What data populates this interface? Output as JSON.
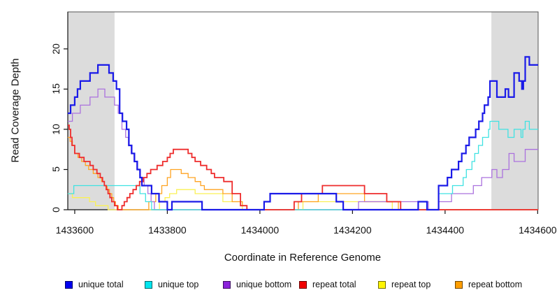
{
  "chart_data": {
    "type": "line",
    "line_style": "step-after",
    "title": "",
    "xlabel": "Coordinate in Reference Genome",
    "ylabel": "Read Coverage Depth",
    "xlim": [
      1433585,
      1434601
    ],
    "ylim": [
      0,
      24.6
    ],
    "xticks": [
      "1433600",
      "1433800",
      "1434000",
      "1434200",
      "1434400",
      "1434600"
    ],
    "xtick_values": [
      1433600,
      1433800,
      1434000,
      1434200,
      1434400,
      1434600
    ],
    "yticks": [
      "0",
      "5",
      "10",
      "15",
      "20"
    ],
    "ytick_values": [
      0,
      5,
      10,
      15,
      20
    ],
    "grid": false,
    "legend_position": "bottom",
    "background_color": "#ffffff",
    "shaded_region_color": "#dcdcdc",
    "shaded_regions": [
      {
        "name": "left-repeat-region",
        "x0": 1433585,
        "x1": 1433686
      },
      {
        "name": "right-repeat-region",
        "x0": 1434500,
        "x1": 1434601
      }
    ],
    "series": [
      {
        "name": "unique total",
        "color": "#1a1ae8",
        "swatch_color": "#0000f0",
        "line_width": 2.2,
        "points": [
          [
            1433585,
            12
          ],
          [
            1433591,
            13
          ],
          [
            1433600,
            14
          ],
          [
            1433606,
            15
          ],
          [
            1433612,
            16
          ],
          [
            1433633,
            17
          ],
          [
            1433650,
            18
          ],
          [
            1433674,
            17
          ],
          [
            1433683,
            16
          ],
          [
            1433690,
            15
          ],
          [
            1433697,
            12
          ],
          [
            1433703,
            11
          ],
          [
            1433712,
            10
          ],
          [
            1433717,
            8
          ],
          [
            1433723,
            7
          ],
          [
            1433729,
            6
          ],
          [
            1433735,
            5
          ],
          [
            1433741,
            4
          ],
          [
            1433745,
            3
          ],
          [
            1433766,
            2
          ],
          [
            1433782,
            1
          ],
          [
            1433800,
            0
          ],
          [
            1433810,
            1
          ],
          [
            1433875,
            0
          ],
          [
            1434009,
            1
          ],
          [
            1434022,
            2
          ],
          [
            1434165,
            1
          ],
          [
            1434180,
            0
          ],
          [
            1434342,
            1
          ],
          [
            1434361,
            0
          ],
          [
            1434386,
            3
          ],
          [
            1434405,
            4
          ],
          [
            1434414,
            5
          ],
          [
            1434429,
            6
          ],
          [
            1434436,
            7
          ],
          [
            1434445,
            8
          ],
          [
            1434452,
            9
          ],
          [
            1434466,
            10
          ],
          [
            1434473,
            11
          ],
          [
            1434481,
            12
          ],
          [
            1434485,
            13
          ],
          [
            1434493,
            14
          ],
          [
            1434497,
            16
          ],
          [
            1434512,
            14
          ],
          [
            1434530,
            15
          ],
          [
            1434537,
            14
          ],
          [
            1434549,
            17
          ],
          [
            1434560,
            16
          ],
          [
            1434566,
            15
          ],
          [
            1434569,
            16
          ],
          [
            1434573,
            19
          ],
          [
            1434582,
            18
          ]
        ]
      },
      {
        "name": "unique top",
        "color": "#3fe2e2",
        "swatch_color": "#00e5ee",
        "line_width": 1.3,
        "points": [
          [
            1433585,
            2
          ],
          [
            1433598,
            3
          ],
          [
            1433741,
            2
          ],
          [
            1433753,
            1
          ],
          [
            1433766,
            0
          ],
          [
            1434386,
            2
          ],
          [
            1434416,
            3
          ],
          [
            1434439,
            4
          ],
          [
            1434446,
            5
          ],
          [
            1434458,
            6
          ],
          [
            1434464,
            7
          ],
          [
            1434472,
            8
          ],
          [
            1434481,
            9
          ],
          [
            1434494,
            10
          ],
          [
            1434497,
            11
          ],
          [
            1434516,
            10
          ],
          [
            1434536,
            9
          ],
          [
            1434549,
            10
          ],
          [
            1434564,
            9
          ],
          [
            1434568,
            10
          ],
          [
            1434573,
            11
          ],
          [
            1434582,
            10
          ]
        ]
      },
      {
        "name": "unique bottom",
        "color": "#ab72de",
        "swatch_color": "#8b23da",
        "line_width": 1.3,
        "points": [
          [
            1433585,
            11
          ],
          [
            1433595,
            12
          ],
          [
            1433612,
            13
          ],
          [
            1433633,
            14
          ],
          [
            1433650,
            15
          ],
          [
            1433665,
            14
          ],
          [
            1433686,
            13
          ],
          [
            1433694,
            12
          ],
          [
            1433702,
            10
          ],
          [
            1433710,
            9
          ],
          [
            1433716,
            8
          ],
          [
            1433722,
            7
          ],
          [
            1433728,
            6
          ],
          [
            1433734,
            5
          ],
          [
            1433742,
            4
          ],
          [
            1433750,
            3
          ],
          [
            1433758,
            2
          ],
          [
            1433765,
            1
          ],
          [
            1433772,
            0
          ],
          [
            1434213,
            1
          ],
          [
            1434364,
            0
          ],
          [
            1434386,
            1
          ],
          [
            1434414,
            2
          ],
          [
            1434461,
            3
          ],
          [
            1434479,
            4
          ],
          [
            1434501,
            5
          ],
          [
            1434512,
            4
          ],
          [
            1434524,
            5
          ],
          [
            1434538,
            7
          ],
          [
            1434549,
            6
          ],
          [
            1434573,
            7.5
          ]
        ]
      },
      {
        "name": "repeat total",
        "color": "#ee2c2c",
        "swatch_color": "#f00000",
        "line_width": 1.8,
        "points": [
          [
            1433585,
            10.5
          ],
          [
            1433588,
            10
          ],
          [
            1433591,
            9
          ],
          [
            1433594,
            8
          ],
          [
            1433600,
            7
          ],
          [
            1433610,
            6.5
          ],
          [
            1433620,
            6
          ],
          [
            1433633,
            5.5
          ],
          [
            1433640,
            5
          ],
          [
            1433648,
            4.5
          ],
          [
            1433655,
            4
          ],
          [
            1433660,
            3.5
          ],
          [
            1433664,
            3
          ],
          [
            1433668,
            2.5
          ],
          [
            1433672,
            2
          ],
          [
            1433676,
            1.5
          ],
          [
            1433680,
            1
          ],
          [
            1433686,
            0.5
          ],
          [
            1433692,
            0
          ],
          [
            1433702,
            0.5
          ],
          [
            1433707,
            1
          ],
          [
            1433713,
            1.5
          ],
          [
            1433719,
            2
          ],
          [
            1433726,
            2.5
          ],
          [
            1433733,
            3
          ],
          [
            1433740,
            3.5
          ],
          [
            1433748,
            4
          ],
          [
            1433756,
            4.5
          ],
          [
            1433764,
            5
          ],
          [
            1433778,
            5.5
          ],
          [
            1433790,
            6
          ],
          [
            1433800,
            6.5
          ],
          [
            1433806,
            7
          ],
          [
            1433813,
            7.5
          ],
          [
            1433845,
            7
          ],
          [
            1433853,
            6.5
          ],
          [
            1433860,
            6
          ],
          [
            1433872,
            5.5
          ],
          [
            1433885,
            5
          ],
          [
            1433895,
            4.5
          ],
          [
            1433902,
            4
          ],
          [
            1433922,
            3.5
          ],
          [
            1433940,
            2
          ],
          [
            1433958,
            0.5
          ],
          [
            1433972,
            0
          ],
          [
            1434074,
            1
          ],
          [
            1434090,
            2
          ],
          [
            1434135,
            3
          ],
          [
            1434226,
            2
          ],
          [
            1434274,
            1
          ],
          [
            1434304,
            0
          ]
        ]
      },
      {
        "name": "repeat top",
        "color": "#faf054",
        "swatch_color": "#fff500",
        "line_width": 1.3,
        "points": [
          [
            1433585,
            2
          ],
          [
            1433595,
            1.5
          ],
          [
            1433632,
            1
          ],
          [
            1433645,
            0.5
          ],
          [
            1433672,
            0
          ],
          [
            1433783,
            1
          ],
          [
            1433795,
            1.5
          ],
          [
            1433805,
            2
          ],
          [
            1433820,
            2.5
          ],
          [
            1433860,
            2
          ],
          [
            1433920,
            1
          ],
          [
            1433962,
            0
          ],
          [
            1434093,
            1
          ],
          [
            1434286,
            0
          ]
        ]
      },
      {
        "name": "repeat bottom",
        "color": "#ffa321",
        "swatch_color": "#ff9e00",
        "line_width": 1.3,
        "points": [
          [
            1433585,
            9
          ],
          [
            1433590,
            8.5
          ],
          [
            1433595,
            8
          ],
          [
            1433600,
            7
          ],
          [
            1433607,
            6.5
          ],
          [
            1433615,
            6
          ],
          [
            1433623,
            5.5
          ],
          [
            1433630,
            5
          ],
          [
            1433640,
            4.5
          ],
          [
            1433650,
            4
          ],
          [
            1433658,
            3.5
          ],
          [
            1433664,
            3
          ],
          [
            1433670,
            2.5
          ],
          [
            1433675,
            2
          ],
          [
            1433680,
            1.5
          ],
          [
            1433684,
            1
          ],
          [
            1433688,
            0.5
          ],
          [
            1433694,
            0
          ],
          [
            1433760,
            1
          ],
          [
            1433775,
            2
          ],
          [
            1433788,
            3
          ],
          [
            1433800,
            4
          ],
          [
            1433807,
            5
          ],
          [
            1433830,
            4.5
          ],
          [
            1433845,
            4
          ],
          [
            1433860,
            3.5
          ],
          [
            1433872,
            3
          ],
          [
            1433880,
            2.5
          ],
          [
            1433920,
            2
          ],
          [
            1433940,
            1
          ],
          [
            1433962,
            0.5
          ],
          [
            1433972,
            0
          ],
          [
            1434083,
            1
          ],
          [
            1434126,
            2
          ],
          [
            1434226,
            1
          ],
          [
            1434299,
            0
          ]
        ]
      }
    ]
  }
}
